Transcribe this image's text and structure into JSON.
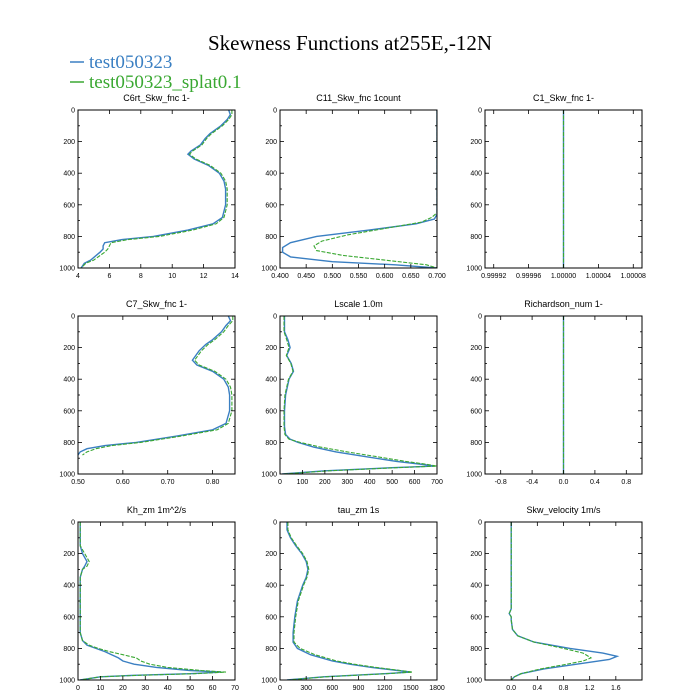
{
  "figure": {
    "title": "Skewness Functions at255E,-12N"
  },
  "legend": [
    {
      "label": "test050323",
      "color": "#3a7fc2"
    },
    {
      "label": "test050323_splat0.1",
      "color": "#3aa832"
    }
  ],
  "chart_data": [
    {
      "type": "line",
      "title": "C6rt_Skw_fnc",
      "units": "1-",
      "xlim": [
        4,
        14
      ],
      "ylim": [
        0,
        1000
      ],
      "y_inverted": true,
      "xticks": [
        4,
        6,
        8,
        10,
        12,
        14
      ],
      "xtick_labels": [
        "4",
        "6",
        "8",
        "10",
        "12",
        "14"
      ],
      "yticks": [
        0,
        200,
        400,
        600,
        800,
        1000
      ],
      "series": [
        {
          "color": "#3a7fc2",
          "y": [
            0,
            30,
            60,
            100,
            150,
            180,
            220,
            260,
            280,
            310,
            350,
            400,
            450,
            500,
            600,
            680,
            720,
            760,
            800,
            820,
            840,
            860,
            880,
            900,
            950,
            970,
            1000
          ],
          "x": [
            13.6,
            13.7,
            13.5,
            13.1,
            12.4,
            12.1,
            11.8,
            11.2,
            11.0,
            11.4,
            12.3,
            13.0,
            13.3,
            13.4,
            13.4,
            13.2,
            12.6,
            11.0,
            8.8,
            6.8,
            5.7,
            5.6,
            5.6,
            5.4,
            4.8,
            4.4,
            4.2
          ]
        },
        {
          "color": "#3aa832",
          "y": [
            0,
            30,
            60,
            100,
            150,
            180,
            220,
            260,
            280,
            310,
            350,
            400,
            450,
            500,
            600,
            680,
            720,
            760,
            800,
            820,
            840,
            860,
            880,
            900,
            950,
            970,
            1000
          ],
          "x": [
            13.8,
            13.8,
            13.6,
            13.2,
            12.5,
            12.2,
            11.9,
            11.3,
            11.1,
            11.5,
            12.4,
            13.1,
            13.4,
            13.5,
            13.5,
            13.3,
            12.8,
            11.3,
            9.2,
            7.2,
            6.1,
            6.0,
            5.9,
            5.7,
            5.0,
            4.5,
            4.2
          ]
        }
      ]
    },
    {
      "type": "line",
      "title": "C11_Skw_fnc",
      "units": "1count",
      "xlim": [
        0.4,
        0.7
      ],
      "ylim": [
        0,
        1000
      ],
      "y_inverted": true,
      "xticks": [
        0.4,
        0.45,
        0.5,
        0.55,
        0.6,
        0.65,
        0.7
      ],
      "xtick_labels": [
        "0.400",
        "0.450",
        "0.500",
        "0.550",
        "0.600",
        "0.650",
        "0.700"
      ],
      "yticks": [
        0,
        200,
        400,
        600,
        800,
        1000
      ],
      "series": [
        {
          "color": "#3a7fc2",
          "y": [
            0,
            200,
            400,
            600,
            660,
            690,
            720,
            760,
            800,
            840,
            870,
            900,
            930,
            960,
            980,
            1000
          ],
          "x": [
            0.7,
            0.7,
            0.7,
            0.7,
            0.7,
            0.695,
            0.66,
            0.57,
            0.47,
            0.42,
            0.405,
            0.405,
            0.42,
            0.5,
            0.62,
            0.7
          ]
        },
        {
          "color": "#3aa832",
          "y": [
            0,
            200,
            400,
            600,
            650,
            680,
            710,
            750,
            790,
            830,
            860,
            890,
            920,
            950,
            980,
            1000
          ],
          "x": [
            0.7,
            0.7,
            0.7,
            0.7,
            0.7,
            0.69,
            0.67,
            0.6,
            0.53,
            0.48,
            0.465,
            0.47,
            0.52,
            0.6,
            0.68,
            0.7
          ]
        }
      ]
    },
    {
      "type": "line",
      "title": "C1_Skw_fnc",
      "units": "1-",
      "xlim": [
        0.99991,
        1.00009
      ],
      "ylim": [
        0,
        1000
      ],
      "y_inverted": true,
      "xticks": [
        0.99992,
        0.99996,
        1.0,
        1.00004,
        1.00008
      ],
      "xtick_labels": [
        "0.99992",
        "0.99996",
        "1.00000",
        "1.00004",
        "1.00008"
      ],
      "yticks": [
        0,
        200,
        400,
        600,
        800,
        1000
      ],
      "series": [
        {
          "color": "#3a7fc2",
          "y": [
            0,
            1000
          ],
          "x": [
            1.0,
            1.0
          ]
        },
        {
          "color": "#3aa832",
          "y": [
            0,
            1000
          ],
          "x": [
            1.0,
            1.0
          ]
        }
      ]
    },
    {
      "type": "line",
      "title": "C7_Skw_fnc",
      "units": "1-",
      "xlim": [
        0.5,
        0.85
      ],
      "ylim": [
        0,
        1000
      ],
      "y_inverted": true,
      "xticks": [
        0.5,
        0.6,
        0.7,
        0.8
      ],
      "xtick_labels": [
        "0.50",
        "0.60",
        "0.70",
        "0.80"
      ],
      "yticks": [
        0,
        200,
        400,
        600,
        800,
        1000
      ],
      "series": [
        {
          "color": "#3a7fc2",
          "y": [
            0,
            30,
            60,
            100,
            150,
            180,
            220,
            260,
            280,
            310,
            350,
            400,
            450,
            500,
            600,
            680,
            720,
            760,
            800,
            820,
            840,
            860,
            880
          ],
          "x": [
            0.835,
            0.84,
            0.83,
            0.82,
            0.8,
            0.785,
            0.77,
            0.76,
            0.755,
            0.765,
            0.8,
            0.825,
            0.835,
            0.838,
            0.838,
            0.83,
            0.8,
            0.72,
            0.63,
            0.56,
            0.52,
            0.505,
            0.5
          ]
        },
        {
          "color": "#3aa832",
          "y": [
            0,
            30,
            60,
            100,
            150,
            180,
            220,
            260,
            280,
            310,
            350,
            400,
            450,
            500,
            600,
            680,
            720,
            760,
            800,
            820,
            840,
            860,
            880
          ],
          "x": [
            0.845,
            0.845,
            0.835,
            0.825,
            0.805,
            0.79,
            0.775,
            0.765,
            0.76,
            0.77,
            0.805,
            0.83,
            0.84,
            0.843,
            0.843,
            0.835,
            0.81,
            0.73,
            0.64,
            0.575,
            0.54,
            0.52,
            0.51
          ]
        }
      ]
    },
    {
      "type": "line",
      "title": "Lscale",
      "units": "1.0m",
      "xlim": [
        0,
        700
      ],
      "ylim": [
        0,
        1000
      ],
      "y_inverted": true,
      "xticks": [
        0,
        100,
        200,
        300,
        400,
        500,
        600,
        700
      ],
      "xtick_labels": [
        "0",
        "100",
        "200",
        "300",
        "400",
        "500",
        "600",
        "700"
      ],
      "yticks": [
        0,
        200,
        400,
        600,
        800,
        1000
      ],
      "series": [
        {
          "color": "#3a7fc2",
          "y": [
            0,
            100,
            150,
            200,
            250,
            300,
            350,
            400,
            500,
            600,
            700,
            750,
            780,
            800,
            830,
            860,
            890,
            920,
            940,
            950,
            960,
            980,
            1000
          ],
          "x": [
            20,
            20,
            35,
            45,
            30,
            50,
            60,
            40,
            25,
            20,
            20,
            25,
            45,
            80,
            150,
            250,
            380,
            520,
            640,
            690,
            500,
            200,
            10
          ]
        },
        {
          "color": "#3aa832",
          "y": [
            0,
            100,
            150,
            200,
            250,
            300,
            350,
            400,
            500,
            600,
            700,
            750,
            780,
            800,
            830,
            860,
            890,
            920,
            940,
            950,
            960,
            980,
            1000
          ],
          "x": [
            18,
            18,
            30,
            40,
            28,
            48,
            58,
            38,
            22,
            18,
            18,
            22,
            40,
            90,
            180,
            300,
            430,
            560,
            660,
            700,
            520,
            220,
            10
          ]
        }
      ]
    },
    {
      "type": "line",
      "title": "Richardson_num",
      "units": "1-",
      "xlim": [
        -1,
        1
      ],
      "ylim": [
        0,
        1000
      ],
      "y_inverted": true,
      "xticks": [
        -0.8,
        -0.4,
        0.0,
        0.4,
        0.8
      ],
      "xtick_labels": [
        "-0.8",
        "-0.4",
        "0.0",
        "0.4",
        "0.8"
      ],
      "yticks": [
        0,
        200,
        400,
        600,
        800,
        1000
      ],
      "series": [
        {
          "color": "#3a7fc2",
          "y": [
            0,
            1000
          ],
          "x": [
            0,
            0
          ]
        },
        {
          "color": "#3aa832",
          "y": [
            0,
            1000
          ],
          "x": [
            0,
            0
          ]
        }
      ]
    },
    {
      "type": "line",
      "title": "Kh_zm",
      "units": "1m^2/s",
      "xlim": [
        0,
        70
      ],
      "ylim": [
        0,
        1000
      ],
      "y_inverted": true,
      "xticks": [
        0,
        10,
        20,
        30,
        40,
        50,
        60,
        70
      ],
      "xtick_labels": [
        "0",
        "10",
        "20",
        "30",
        "40",
        "50",
        "60",
        "70"
      ],
      "yticks": [
        0,
        200,
        400,
        600,
        800,
        1000
      ],
      "series": [
        {
          "color": "#3a7fc2",
          "y": [
            0,
            150,
            200,
            250,
            280,
            300,
            350,
            400,
            500,
            600,
            700,
            750,
            780,
            800,
            820,
            840,
            860,
            880,
            900,
            920,
            940,
            950,
            960,
            970,
            980,
            1000
          ],
          "x": [
            1,
            1,
            2,
            4,
            3,
            2,
            1,
            1,
            1,
            1,
            1,
            2,
            4,
            8,
            12,
            15,
            18,
            20,
            25,
            35,
            50,
            64,
            50,
            25,
            10,
            1
          ]
        },
        {
          "color": "#3aa832",
          "y": [
            0,
            150,
            200,
            250,
            280,
            300,
            350,
            400,
            500,
            600,
            700,
            750,
            780,
            800,
            820,
            840,
            860,
            880,
            900,
            920,
            940,
            950,
            960,
            970,
            980,
            1000
          ],
          "x": [
            1,
            1,
            3,
            5,
            4,
            2,
            1,
            1,
            1,
            1,
            1,
            2,
            5,
            9,
            14,
            20,
            26,
            28,
            32,
            40,
            55,
            66,
            52,
            27,
            10,
            1
          ]
        }
      ]
    },
    {
      "type": "line",
      "title": "tau_zm",
      "units": "1s",
      "xlim": [
        0,
        1800
      ],
      "ylim": [
        0,
        1000
      ],
      "y_inverted": true,
      "xticks": [
        0,
        300,
        600,
        900,
        1200,
        1500,
        1800
      ],
      "xtick_labels": [
        "0",
        "300",
        "600",
        "900",
        "1200",
        "1500",
        "1800"
      ],
      "yticks": [
        0,
        200,
        400,
        600,
        800,
        1000
      ],
      "series": [
        {
          "color": "#3a7fc2",
          "y": [
            0,
            50,
            100,
            150,
            200,
            250,
            300,
            350,
            400,
            500,
            600,
            700,
            760,
            800,
            840,
            880,
            900,
            920,
            940,
            950,
            960,
            980,
            1000
          ],
          "x": [
            80,
            80,
            120,
            180,
            250,
            300,
            320,
            300,
            260,
            200,
            170,
            150,
            150,
            200,
            350,
            600,
            800,
            1050,
            1350,
            1500,
            1200,
            500,
            80
          ]
        },
        {
          "color": "#3aa832",
          "y": [
            0,
            50,
            100,
            150,
            200,
            250,
            300,
            350,
            400,
            500,
            600,
            700,
            760,
            800,
            840,
            880,
            900,
            920,
            940,
            950,
            960,
            980,
            1000
          ],
          "x": [
            90,
            90,
            130,
            190,
            260,
            310,
            330,
            310,
            270,
            210,
            180,
            160,
            160,
            230,
            400,
            650,
            850,
            1100,
            1380,
            1520,
            1220,
            520,
            90
          ]
        }
      ]
    },
    {
      "type": "line",
      "title": "Skw_velocity",
      "units": "1m/s",
      "xlim": [
        -0.4,
        2.0
      ],
      "ylim": [
        0,
        1000
      ],
      "y_inverted": true,
      "xticks": [
        0.0,
        0.4,
        0.8,
        1.2,
        1.6
      ],
      "xtick_labels": [
        "0.0",
        "0.4",
        "0.8",
        "1.2",
        "1.6"
      ],
      "yticks": [
        0,
        200,
        400,
        600,
        800,
        1000
      ],
      "series": [
        {
          "color": "#3a7fc2",
          "y": [
            0,
            200,
            400,
            550,
            580,
            600,
            620,
            680,
            720,
            760,
            800,
            830,
            850,
            870,
            900,
            930,
            960,
            980,
            1000
          ],
          "x": [
            0.0,
            0.0,
            0.0,
            0.0,
            -0.03,
            0.0,
            0.0,
            0.02,
            0.1,
            0.35,
            0.9,
            1.4,
            1.62,
            1.5,
            1.0,
            0.5,
            0.15,
            0.05,
            0.0
          ]
        },
        {
          "color": "#3aa832",
          "y": [
            0,
            200,
            400,
            550,
            580,
            600,
            620,
            680,
            720,
            760,
            800,
            830,
            860,
            880,
            900,
            930,
            960,
            980,
            1000
          ],
          "x": [
            0.0,
            0.0,
            0.0,
            0.0,
            -0.03,
            0.0,
            0.0,
            0.02,
            0.1,
            0.35,
            0.8,
            1.1,
            1.22,
            1.1,
            0.85,
            0.45,
            0.15,
            0.05,
            0.0
          ]
        }
      ]
    }
  ]
}
